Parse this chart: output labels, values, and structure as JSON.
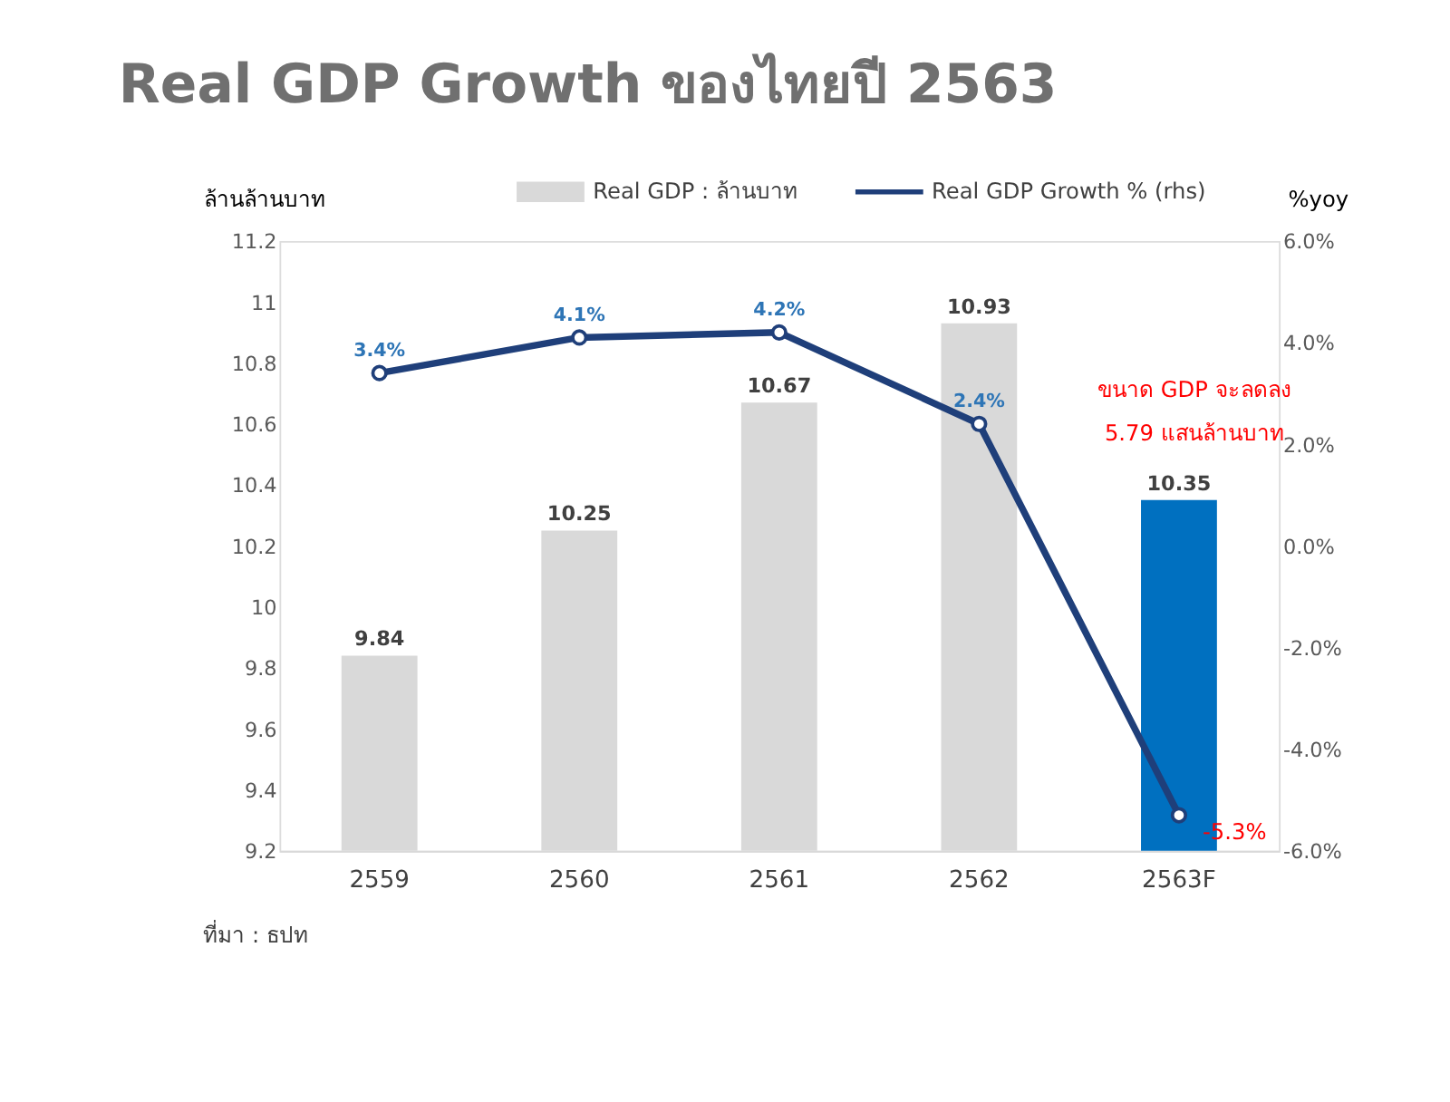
{
  "chart_data": {
    "type": "bar",
    "title": "Real GDP Growth ของไทยปี 2563",
    "categories": [
      "2559",
      "2560",
      "2561",
      "2562",
      "2563F"
    ],
    "series": [
      {
        "name": "Real GDP : ล้านบาท",
        "type": "bar",
        "color": "#d9d9d9",
        "colors": [
          "#d9d9d9",
          "#d9d9d9",
          "#d9d9d9",
          "#d9d9d9",
          "#0070c0"
        ],
        "values": [
          9.84,
          10.25,
          10.67,
          10.93,
          10.35
        ],
        "value_labels": [
          "9.84",
          "10.25",
          "10.67",
          "10.93",
          "10.35"
        ]
      },
      {
        "name": "Real GDP Growth % (rhs)",
        "type": "line",
        "axis": "y2",
        "color": "#1f3f7a",
        "marker": "circle",
        "values": [
          3.4,
          4.1,
          4.2,
          2.4,
          -5.3
        ],
        "value_labels": [
          "3.4%",
          "4.1%",
          "4.2%",
          "2.4%",
          "-5.3%"
        ]
      }
    ],
    "ylabel": "ล้านล้านบาท",
    "y2label": "%yoy",
    "ylim": [
      9.2,
      11.2
    ],
    "yticks": [
      9.2,
      9.4,
      9.6,
      9.8,
      10,
      10.2,
      10.4,
      10.6,
      10.8,
      11,
      11.2
    ],
    "y2lim": [
      -6,
      6
    ],
    "y2ticks": [
      {
        "value": -6,
        "label": "-6.0%"
      },
      {
        "value": -4,
        "label": "-4.0%"
      },
      {
        "value": -2,
        "label": "-2.0%"
      },
      {
        "value": 0,
        "label": "0.0%"
      },
      {
        "value": 2,
        "label": "2.0%"
      },
      {
        "value": 4,
        "label": "4.0%"
      },
      {
        "value": 6,
        "label": "6.0%"
      }
    ],
    "grid": false,
    "legend": "top",
    "annotations": [
      "ขนาด GDP จะลดลง\n5.79 แสนล้านบาท",
      "ที่มา : ธปท"
    ]
  }
}
